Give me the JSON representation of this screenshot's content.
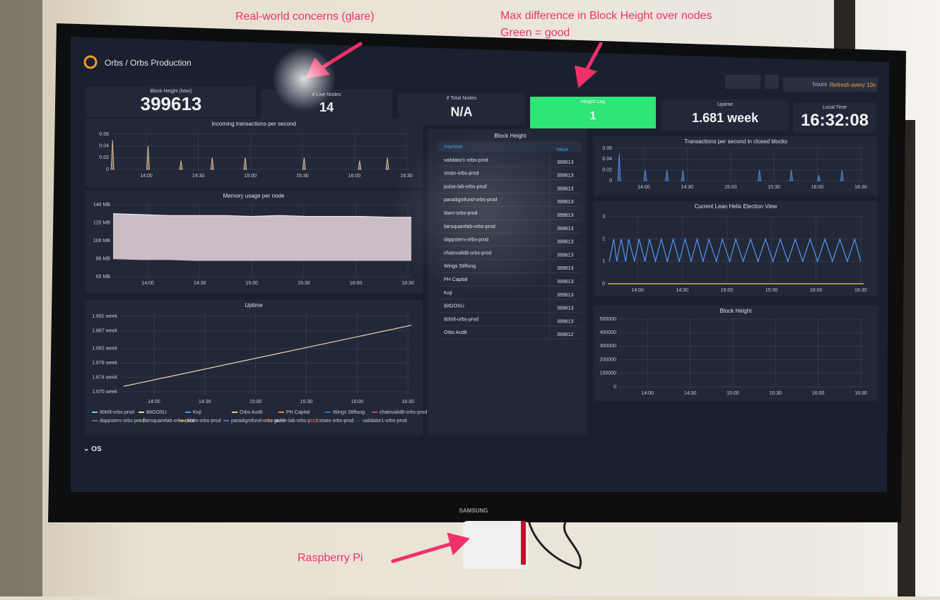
{
  "annotations": [
    "Real-world concerns (glare)",
    "Max difference in Block Height over nodes",
    "Green = good",
    "Raspberry Pi"
  ],
  "brand": "SAMSUNG",
  "header": {
    "title": "Orbs / Orbs Production",
    "time_range": "hours",
    "refresh": "Refresh every 10s"
  },
  "stats": [
    {
      "label": "Block Height (Max)",
      "value": 399613
    },
    {
      "label": "# Live Nodes",
      "value": 14
    },
    {
      "label": "# Total Nodes",
      "value": "N/A"
    },
    {
      "label": "Height Lag",
      "value": 1
    },
    {
      "label": "Uptime",
      "value": "1.681 week"
    },
    {
      "label": "Local Time",
      "value": "16:32:08"
    }
  ],
  "table": {
    "title": "Block Height",
    "columns": [
      "machine",
      "Value"
    ],
    "rows": [
      [
        "validator1-orbs-prod",
        399613
      ],
      [
        "stratx-orbs-prod",
        399613
      ],
      [
        "pulse-lab-orbs-prod",
        399613
      ],
      [
        "paradigmfund-orbs-prod",
        399613
      ],
      [
        "ldam-orbs-prod",
        399613
      ],
      [
        "fairsquarelab-orbs-prod",
        399613
      ],
      [
        "dappsters-orbs-prod",
        399613
      ],
      [
        "chainvalid8-orbs-prod",
        399613
      ],
      [
        "Wings Stiftung",
        399613
      ],
      [
        "PH Capital",
        399613
      ],
      [
        "Koji",
        399613
      ],
      [
        "BitGOSU",
        399613
      ],
      [
        "80trill-orbs-prod",
        399613
      ],
      [
        "Orbs Audit",
        399612
      ]
    ]
  },
  "charts": [
    {
      "type": "spikes",
      "title": "Incoming transactions per second",
      "ylim": [
        0,
        0.06
      ],
      "yticks": [
        0,
        0.02,
        0.04,
        0.06
      ],
      "xlim": [
        820,
        992
      ],
      "xticks": [
        {
          "value": 840,
          "label": "14:00"
        },
        {
          "value": 870,
          "label": "14:30"
        },
        {
          "value": 900,
          "label": "15:00"
        },
        {
          "value": 930,
          "label": "15:30"
        },
        {
          "value": 960,
          "label": "16:00"
        },
        {
          "value": 990,
          "label": "16:30"
        }
      ],
      "series": [
        {
          "color": "#f2c9a0",
          "x": [
            820.5,
            841,
            860,
            878,
            897,
            931,
            963,
            979
          ],
          "values": [
            0.05,
            0.04,
            0.015,
            0.02,
            0.02,
            0.02,
            0.015,
            0.02
          ]
        }
      ]
    },
    {
      "type": "band",
      "title": "Memory usage per node",
      "ylim": [
        60,
        140
      ],
      "yticks": [
        {
          "value": 60,
          "label": "60 MB"
        },
        {
          "value": 80,
          "label": "80 MB"
        },
        {
          "value": 100,
          "label": "100 MB"
        },
        {
          "value": 120,
          "label": "120 MB"
        },
        {
          "value": 140,
          "label": "140 MB"
        }
      ],
      "xlim": [
        820,
        992
      ],
      "xticks": [
        {
          "value": 840,
          "label": "14:00"
        },
        {
          "value": 870,
          "label": "14:30"
        },
        {
          "value": 900,
          "label": "15:00"
        },
        {
          "value": 930,
          "label": "15:30"
        },
        {
          "value": 960,
          "label": "16:00"
        },
        {
          "value": 990,
          "label": "16:30"
        }
      ],
      "color": "#e8d6de",
      "series": [
        {
          "color": "#f0e4ea",
          "x": [
            820,
            836,
            852,
            868,
            884,
            900,
            916,
            932,
            948,
            964,
            980,
            992
          ],
          "values": [
            130,
            129,
            128,
            128,
            128,
            127,
            128,
            127,
            127,
            127,
            126,
            126
          ]
        },
        {
          "color": "#c9aab8",
          "x": [
            820,
            836,
            852,
            868,
            884,
            900,
            916,
            932,
            948,
            964,
            980,
            992
          ],
          "values": [
            80,
            79,
            79,
            78,
            78,
            78,
            78,
            78,
            78,
            78,
            78,
            78
          ]
        }
      ]
    },
    {
      "type": "line",
      "title": "Uptime",
      "ylim": [
        1.669,
        1.692
      ],
      "yticks": [
        {
          "value": 1.67,
          "label": "1.670 week"
        },
        {
          "value": 1.674,
          "label": "1.674 week"
        },
        {
          "value": 1.678,
          "label": "1.678 week"
        },
        {
          "value": 1.682,
          "label": "1.682 week"
        },
        {
          "value": 1.687,
          "label": "1.687 week"
        },
        {
          "value": 1.691,
          "label": "1.691 week"
        }
      ],
      "xlim": [
        820,
        992
      ],
      "xticks": [
        {
          "value": 840,
          "label": "14:00"
        },
        {
          "value": 870,
          "label": "14:30"
        },
        {
          "value": 900,
          "label": "15:00"
        },
        {
          "value": 930,
          "label": "15:30"
        },
        {
          "value": 960,
          "label": "16:00"
        },
        {
          "value": 990,
          "label": "16:30"
        }
      ],
      "series": [
        {
          "color": "#f6d5b0",
          "x": [
            822,
            992
          ],
          "values": [
            1.6715,
            1.6885
          ]
        }
      ],
      "legend": [
        {
          "name": "80trill-orbs-prod",
          "color": "#6ed0e0"
        },
        {
          "name": "BitGOSU",
          "color": "#f6d5b0"
        },
        {
          "name": "Koji",
          "color": "#5794f2"
        },
        {
          "name": "Orbs Audit",
          "color": "#f2c96d"
        },
        {
          "name": "PH Capital",
          "color": "#ef843c"
        },
        {
          "name": "Wings Stiftung",
          "color": "#1f78c1"
        },
        {
          "name": "chainvalid8-orbs-prod",
          "color": "#ba43a9"
        },
        {
          "name": "dappsters-orbs-prod",
          "color": "#705da0"
        },
        {
          "name": "fairsquarelab-orbs-prod",
          "color": "#508642"
        },
        {
          "name": "ldam-orbs-prod",
          "color": "#cca300"
        },
        {
          "name": "paradigmfund-orbs-prod",
          "color": "#447ebc"
        },
        {
          "name": "pulse-lab-orbs-prod",
          "color": "#c15c17"
        },
        {
          "name": "stratx-orbs-prod",
          "color": "#890f02"
        },
        {
          "name": "validator1-orbs-prod",
          "color": "#0a437c"
        }
      ]
    },
    {
      "type": "spikes",
      "title": "Transactions per second in closed blocks",
      "ylim": [
        0,
        0.06
      ],
      "yticks": [
        0,
        0.02,
        0.04,
        0.06
      ],
      "xlim": [
        820,
        992
      ],
      "xticks": [
        {
          "value": 840,
          "label": "14:00"
        },
        {
          "value": 870,
          "label": "14:30"
        },
        {
          "value": 900,
          "label": "15:00"
        },
        {
          "value": 930,
          "label": "15:30"
        },
        {
          "value": 960,
          "label": "16:00"
        },
        {
          "value": 990,
          "label": "16:30"
        }
      ],
      "series": [
        {
          "color": "#5794f2",
          "x": [
            823,
            841,
            856,
            867,
            920,
            942,
            961,
            977
          ],
          "values": [
            0.05,
            0.02,
            0.02,
            0.02,
            0.02,
            0.02,
            0.01,
            0.02
          ]
        }
      ]
    },
    {
      "type": "line",
      "title": "Current Lean Helix Election View",
      "ylim": [
        0,
        3
      ],
      "yticks": [
        0,
        1,
        2,
        3
      ],
      "xlim": [
        820,
        992
      ],
      "xticks": [
        {
          "value": 840,
          "label": "14:00"
        },
        {
          "value": 870,
          "label": "14:30"
        },
        {
          "value": 900,
          "label": "15:00"
        },
        {
          "value": 930,
          "label": "15:30"
        },
        {
          "value": 960,
          "label": "16:00"
        },
        {
          "value": 990,
          "label": "16:30"
        }
      ],
      "series": [
        {
          "color": "#5794f2",
          "x": [
            821,
            824,
            826,
            829,
            832,
            834,
            838,
            841,
            845,
            848,
            852,
            856,
            860,
            864,
            868,
            872,
            876,
            880,
            884,
            888,
            893,
            897,
            902,
            906,
            911,
            916,
            921,
            926,
            931,
            936,
            941,
            946,
            951,
            956,
            961,
            966,
            971,
            976,
            981,
            986,
            990
          ],
          "values": [
            1,
            2,
            1,
            2,
            1,
            2,
            1,
            2,
            1,
            2,
            1,
            2,
            1,
            2,
            1,
            2,
            1,
            2,
            1,
            2,
            1,
            2,
            1,
            2,
            1,
            2,
            1,
            2,
            1,
            2,
            1,
            2,
            1,
            2,
            1,
            2,
            1,
            2,
            1,
            2,
            1
          ]
        },
        {
          "color": "#f2c96d",
          "x": [
            820,
            992
          ],
          "values": [
            0,
            0
          ]
        }
      ]
    },
    {
      "type": "line",
      "title": "Block Height",
      "ylim": [
        0,
        500000
      ],
      "yticks": [
        0,
        100000,
        200000,
        300000,
        400000,
        500000
      ],
      "xlim": [
        820,
        992
      ],
      "xticks": [
        {
          "value": 840,
          "label": "14:00"
        },
        {
          "value": 870,
          "label": "14:30"
        },
        {
          "value": 900,
          "label": "15:00"
        },
        {
          "value": 930,
          "label": "15:30"
        },
        {
          "value": 960,
          "label": "16:00"
        },
        {
          "value": 990,
          "label": "16:30"
        }
      ],
      "series": []
    }
  ],
  "row_title": "OS"
}
